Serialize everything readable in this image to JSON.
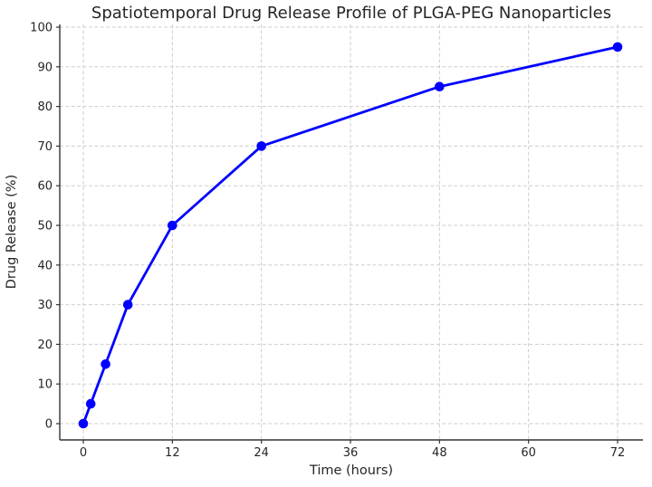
{
  "chart_data": {
    "type": "line",
    "title": "Spatiotemporal Drug Release Profile of PLGA-PEG Nanoparticles",
    "xlabel": "Time (hours)",
    "ylabel": "Drug Release (%)",
    "series": [
      {
        "name": "Drug Release",
        "x": [
          0,
          1,
          3,
          6,
          12,
          24,
          48,
          72
        ],
        "y": [
          0,
          5,
          15,
          30,
          50,
          70,
          85,
          95
        ],
        "line_color": "#0000ff",
        "marker": "circle",
        "marker_color": "#0000ff"
      }
    ],
    "xticks": [
      0,
      12,
      24,
      36,
      48,
      60,
      72
    ],
    "yticks": [
      0,
      10,
      20,
      30,
      40,
      50,
      60,
      70,
      80,
      90,
      100
    ],
    "xlim": [
      -3.2,
      75.4
    ],
    "ylim": [
      -4.1,
      100.7
    ],
    "grid": true,
    "grid_style": "dashed",
    "legend": "none",
    "grid_color": "#cdcdcd",
    "axis_color": "#333333",
    "text_color": "#262626",
    "background_color": "#ffffff"
  }
}
